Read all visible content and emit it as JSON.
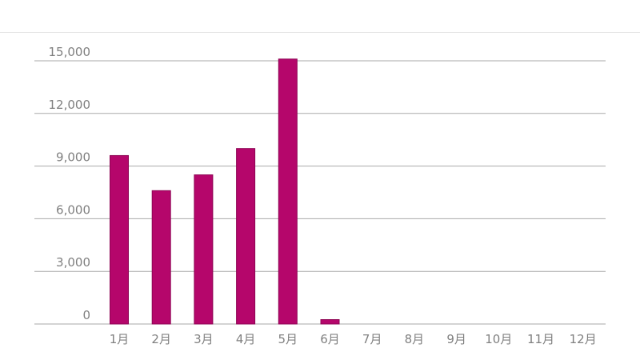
{
  "chart_data": {
    "type": "bar",
    "categories": [
      "1月",
      "2月",
      "3月",
      "4月",
      "5月",
      "6月",
      "7月",
      "8月",
      "9月",
      "10月",
      "11月",
      "12月"
    ],
    "values": [
      9600,
      7600,
      8500,
      10000,
      15100,
      250,
      0,
      0,
      0,
      0,
      0,
      0
    ],
    "yticks": [
      "0",
      "3,000",
      "6,000",
      "9,000",
      "12,000",
      "15,000"
    ],
    "ytick_values": [
      0,
      3000,
      6000,
      9000,
      12000,
      15000
    ],
    "ylim": [
      0,
      15000
    ],
    "grid": true,
    "colors": {
      "bar": "#b5066b",
      "bar_edge": "#8e0454",
      "gridline": "#aaaaaa",
      "tick_text": "#808080"
    }
  }
}
